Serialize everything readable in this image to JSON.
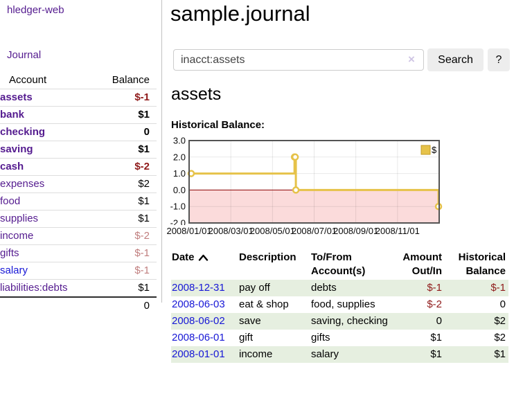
{
  "app": {
    "brand": "hledger-web",
    "nav_journal": "Journal"
  },
  "sidebar": {
    "header": {
      "account": "Account",
      "balance": "Balance"
    },
    "accounts": [
      {
        "name": "assets",
        "balance": "$-1"
      },
      {
        "name": "bank",
        "balance": "$1"
      },
      {
        "name": "checking",
        "balance": "0"
      },
      {
        "name": "saving",
        "balance": "$1"
      },
      {
        "name": "cash",
        "balance": "$-2"
      },
      {
        "name": "expenses",
        "balance": "$2"
      },
      {
        "name": "food",
        "balance": "$1"
      },
      {
        "name": "supplies",
        "balance": "$1"
      },
      {
        "name": "income",
        "balance": "$-2"
      },
      {
        "name": "gifts",
        "balance": "$-1"
      },
      {
        "name": "salary",
        "balance": "$-1"
      },
      {
        "name": "liabilities:debts",
        "balance": "$1"
      }
    ],
    "total": "0"
  },
  "main": {
    "title": "sample.journal",
    "search": {
      "value": "inacct:assets",
      "clear_icon": "×",
      "button": "Search",
      "help_button": "?"
    },
    "account_heading": "assets",
    "chart_label": "Historical Balance:"
  },
  "chart_data": {
    "type": "line",
    "step": true,
    "title": "Historical Balance",
    "series": [
      {
        "name": "$",
        "color": "#e6c249",
        "points": [
          [
            "2008-01-01",
            1
          ],
          [
            "2008-06-01",
            2
          ],
          [
            "2008-06-02",
            2
          ],
          [
            "2008-06-03",
            0
          ],
          [
            "2008-12-31",
            -1
          ]
        ]
      }
    ],
    "ylim": [
      -2,
      3
    ],
    "yticks": [
      3.0,
      2.0,
      1.0,
      0.0,
      -1.0,
      -2.0
    ],
    "xticks": [
      "2008/01/01",
      "2008/03/01",
      "2008/05/01",
      "2008/07/01",
      "2008/09/01",
      "2008/11/01"
    ],
    "legend": {
      "label": "$",
      "position": "top-right"
    },
    "grid": true,
    "negative_region_color": "#fbdbdb",
    "zero_line_color": "#8b0000",
    "border_color": "#545454"
  },
  "register": {
    "columns": [
      "Date",
      "Description",
      "To/From Account(s)",
      "Amount Out/In",
      "Historical Balance"
    ],
    "rows": [
      {
        "date": "2008-12-31",
        "description": "pay off",
        "accounts": "debts",
        "amount": "$-1",
        "balance": "$-1"
      },
      {
        "date": "2008-06-03",
        "description": "eat & shop",
        "accounts": "food, supplies",
        "amount": "$-2",
        "balance": "0"
      },
      {
        "date": "2008-06-02",
        "description": "save",
        "accounts": "saving, checking",
        "amount": "0",
        "balance": "$2"
      },
      {
        "date": "2008-06-01",
        "description": "gift",
        "accounts": "gifts",
        "amount": "$1",
        "balance": "$2"
      },
      {
        "date": "2008-01-01",
        "description": "income",
        "accounts": "salary",
        "amount": "$1",
        "balance": "$1"
      }
    ]
  }
}
